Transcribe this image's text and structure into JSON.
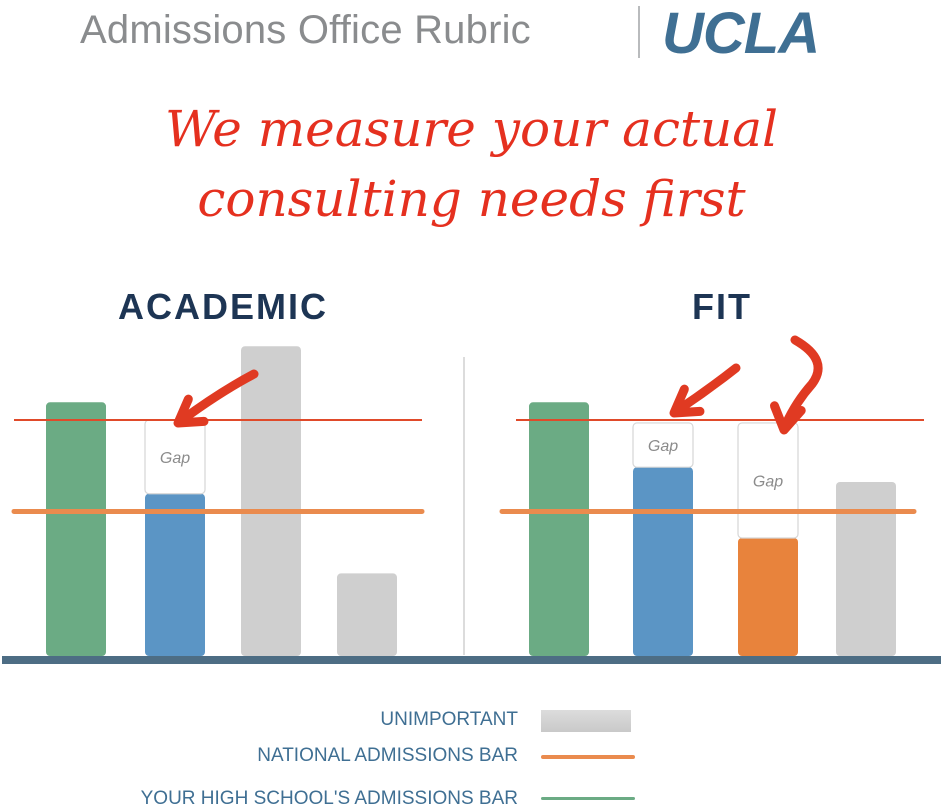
{
  "header": {
    "title": "Admissions Office Rubric",
    "logo": "UCLA"
  },
  "headline": {
    "line1": "We measure your actual",
    "line2": "consulting needs first"
  },
  "colors": {
    "green": "#6bab84",
    "blue": "#5b95c5",
    "orange_bar": "#e8833c",
    "gray": "#cfcfcf",
    "red_line": "#e04a2a",
    "orange_line": "#ea8b4e",
    "baseline": "#4d6d84",
    "arrow": "#e03a22"
  },
  "chart_data": [
    {
      "type": "bar",
      "title": "ACADEMIC",
      "scale": "ordinal, no numeric axis",
      "reference_lines": {
        "your_high_schools_admissions_bar": 0.8,
        "national_admissions_bar": 0.49
      },
      "bars": [
        {
          "color": "green",
          "value": 0.86
        },
        {
          "color": "blue",
          "value": 0.55,
          "gap_to": 0.8,
          "gap_label": "Gap"
        },
        {
          "color": "gray",
          "value": 1.05
        },
        {
          "color": "gray",
          "value": 0.28
        }
      ]
    },
    {
      "type": "bar",
      "title": "FIT",
      "scale": "ordinal, no numeric axis",
      "reference_lines": {
        "your_high_schools_admissions_bar": 0.8,
        "national_admissions_bar": 0.49
      },
      "bars": [
        {
          "color": "green",
          "value": 0.86
        },
        {
          "color": "blue",
          "value": 0.64,
          "gap_to": 0.79,
          "gap_label": "Gap"
        },
        {
          "color": "orange",
          "value": 0.4,
          "gap_to": 0.79,
          "gap_label": "Gap"
        },
        {
          "color": "gray",
          "value": 0.59
        }
      ]
    }
  ],
  "legend": [
    {
      "label": "UNIMPORTANT",
      "swatch": "bar",
      "color": "#cfcfcf"
    },
    {
      "label": "NATIONAL ADMISSIONS BAR",
      "swatch": "line",
      "color": "#ea8b4e"
    },
    {
      "label": "YOUR HIGH SCHOOL'S ADMISSIONS BAR",
      "swatch": "line",
      "color": "#6bab84"
    }
  ]
}
